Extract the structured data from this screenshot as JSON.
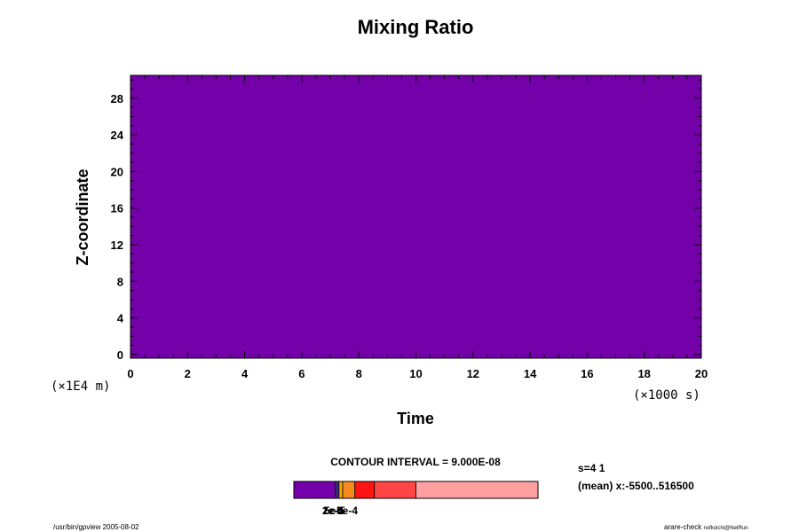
{
  "colors": {
    "field": "#7300a8",
    "colorbar": [
      "#7300a8",
      "#f5a800",
      "#f58a1e",
      "#ff1414",
      "#ff4646",
      "#ffa0a0"
    ]
  },
  "chart_data": {
    "type": "heatmap",
    "title": "Mixing Ratio",
    "xlabel": "Time",
    "ylabel": "Z-coordinate",
    "x_unit": "(×1000 s)",
    "y_unit": "(×1E4 m)",
    "xlim": [
      0,
      20
    ],
    "ylim": [
      -0.4,
      30.5
    ],
    "x_ticks": [
      0,
      2,
      4,
      6,
      8,
      10,
      12,
      14,
      16,
      18,
      20
    ],
    "y_ticks": [
      0,
      4,
      8,
      12,
      16,
      20,
      24,
      28
    ],
    "field_value": "uniform (lowest contour level)",
    "contour_interval": "CONTOUR INTERVAL = 9.000E-08",
    "colorbar_labels": [
      "2e-5",
      "5e-5",
      "1e-4",
      "5e-4"
    ],
    "colorbar_segments": [
      {
        "from": 0.0,
        "to": 0.17
      },
      {
        "from": 0.17,
        "to": 0.185
      },
      {
        "from": 0.185,
        "to": 0.2
      },
      {
        "from": 0.2,
        "to": 0.25
      },
      {
        "from": 0.25,
        "to": 0.33
      },
      {
        "from": 0.33,
        "to": 0.5
      },
      {
        "from": 0.5,
        "to": 1.0
      }
    ]
  },
  "annotations": {
    "slice": "s=4 1",
    "mean": "(mean) x:-5500..516500",
    "footer_left": "/usr/bin/gpview 2005-08-02",
    "footer_right_main": "arare-check",
    "footer_right_sub": "nofkoichi@NetRun"
  }
}
